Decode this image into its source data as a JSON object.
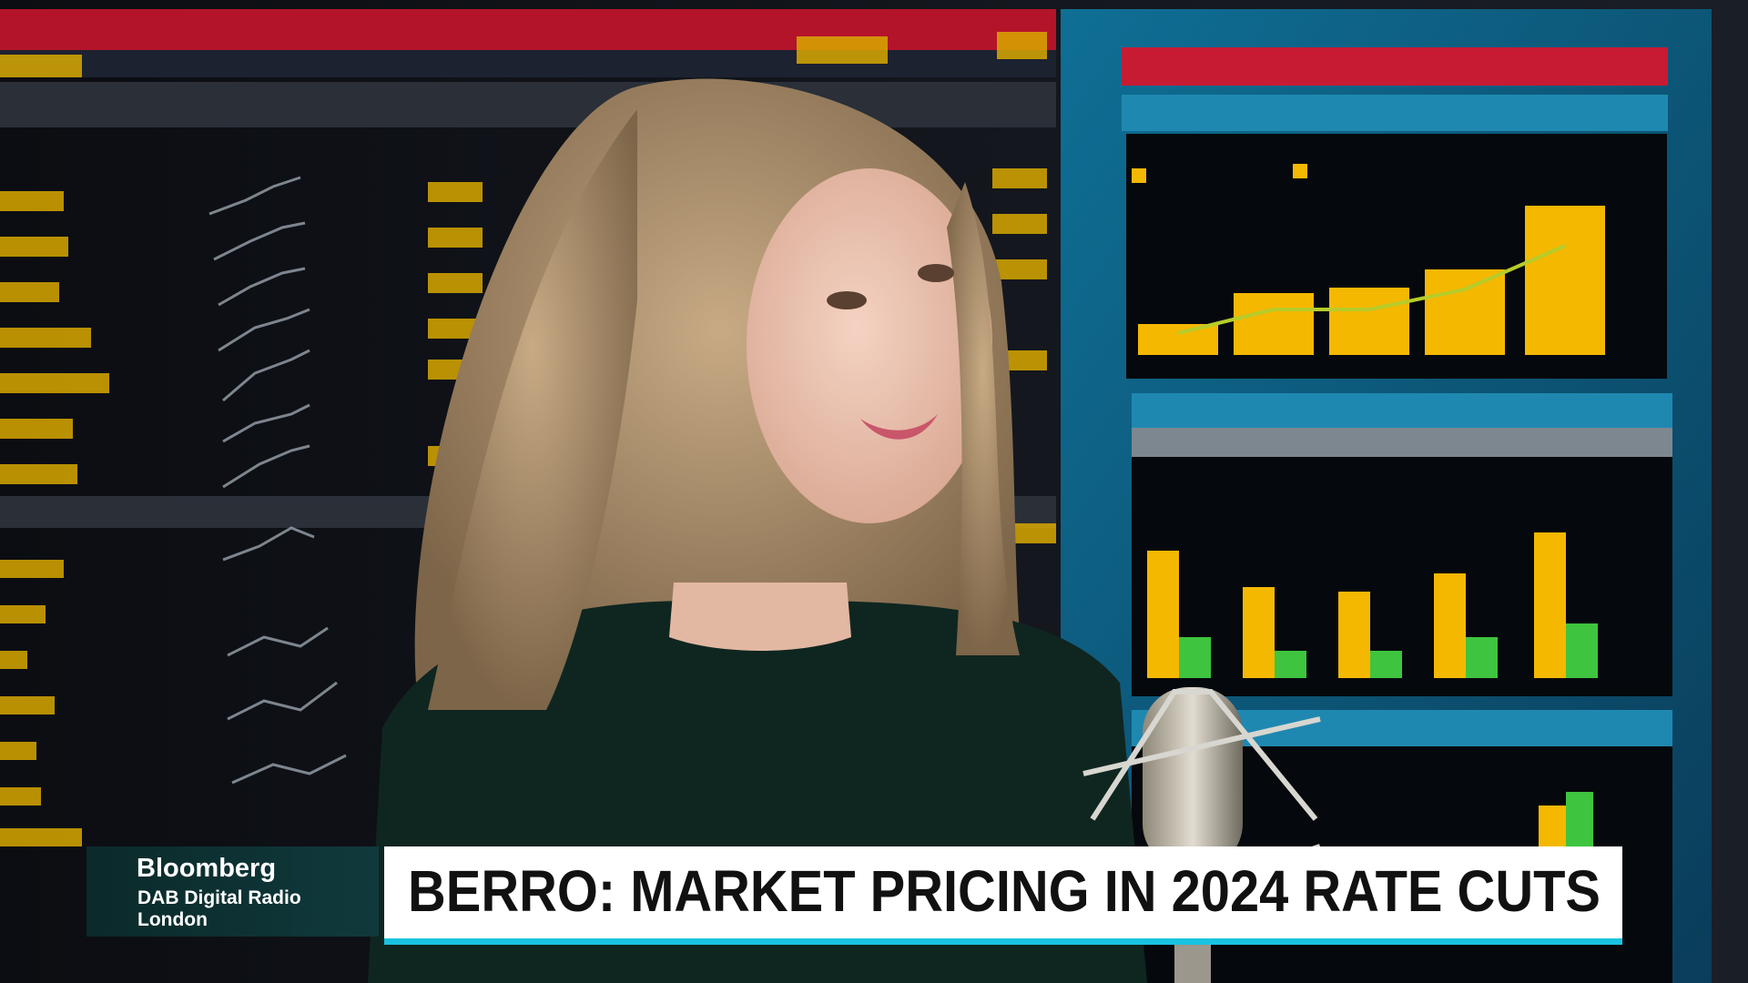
{
  "lower_third": {
    "network": "Bloomberg",
    "channel": "DAB Digital Radio",
    "location": "London"
  },
  "headline": "BERRO: MARKET PRICING IN 2024 RATE CUTS"
}
